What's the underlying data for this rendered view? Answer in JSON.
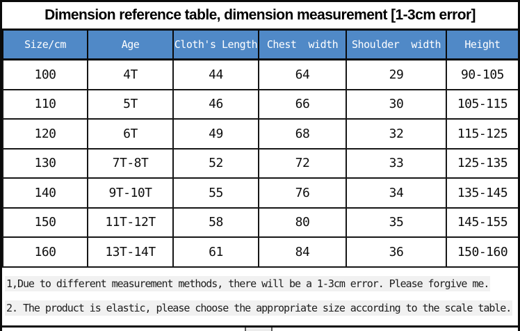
{
  "title": "Dimension reference table, dimension measurement [1-3cm error]",
  "size_table": {
    "columns": [
      "Size/cm",
      "Age",
      "Cloth's Length",
      "Chest  width",
      "Shoulder  width",
      "Height"
    ],
    "rows": [
      [
        "100",
        "4T",
        "44",
        "64",
        "29",
        "90-105"
      ],
      [
        "110",
        "5T",
        "46",
        "66",
        "30",
        "105-115"
      ],
      [
        "120",
        "6T",
        "49",
        "68",
        "32",
        "115-125"
      ],
      [
        "130",
        "7T-8T",
        "52",
        "72",
        "33",
        "125-135"
      ],
      [
        "140",
        "9T-10T",
        "55",
        "76",
        "34",
        "135-145"
      ],
      [
        "150",
        "11T-12T",
        "58",
        "80",
        "35",
        "145-155"
      ],
      [
        "160",
        "13T-14T",
        "61",
        "84",
        "36",
        "150-160"
      ]
    ]
  },
  "notes": [
    "1,Due to different measurement methods, there will be a 1-3cm error. Please forgive me.",
    "2. The product is elastic, please choose the appropriate size according to the scale table."
  ],
  "colors": {
    "header_bg": "#5089c7",
    "header_text": "#ffffff",
    "border": "#0a0a0a",
    "note_highlight": "#f1f1f1"
  }
}
